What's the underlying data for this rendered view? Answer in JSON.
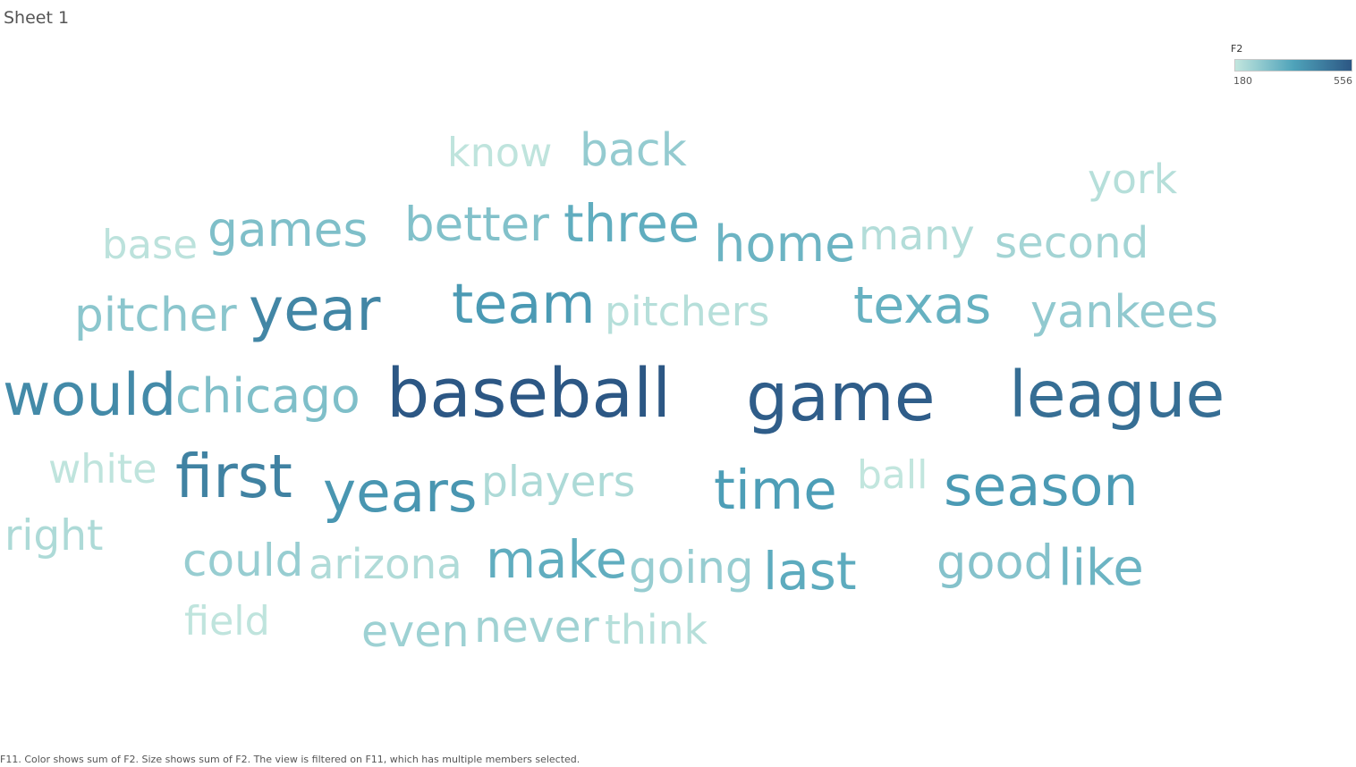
{
  "sheet": {
    "title": "Sheet 1"
  },
  "legend": {
    "title": "F2",
    "min_label": "180",
    "max_label": "556",
    "color_low": "#c2e6de",
    "color_mid": "#4fa3ba",
    "color_high": "#2c5784"
  },
  "caption": "F11.  Color shows sum of F2.  Size shows sum of F2. The view is filtered on F11, which has multiple members selected.",
  "chart_data": {
    "type": "word-cloud",
    "color_field": "F2",
    "size_field": "F2",
    "words": [
      {
        "text": "baseball",
        "value": 556
      },
      {
        "text": "game",
        "value": 540
      },
      {
        "text": "league",
        "value": 500
      },
      {
        "text": "would",
        "value": 430
      },
      {
        "text": "first",
        "value": 450
      },
      {
        "text": "year",
        "value": 440
      },
      {
        "text": "season",
        "value": 390
      },
      {
        "text": "time",
        "value": 380
      },
      {
        "text": "team",
        "value": 390
      },
      {
        "text": "years",
        "value": 400
      },
      {
        "text": "three",
        "value": 340
      },
      {
        "text": "make",
        "value": 340
      },
      {
        "text": "texas",
        "value": 330
      },
      {
        "text": "last",
        "value": 345
      },
      {
        "text": "like",
        "value": 320
      },
      {
        "text": "home",
        "value": 320
      },
      {
        "text": "games",
        "value": 290
      },
      {
        "text": "better",
        "value": 285
      },
      {
        "text": "chicago",
        "value": 290
      },
      {
        "text": "good",
        "value": 280
      },
      {
        "text": "pitcher",
        "value": 270
      },
      {
        "text": "yankees",
        "value": 260
      },
      {
        "text": "back",
        "value": 255
      },
      {
        "text": "could",
        "value": 250
      },
      {
        "text": "going",
        "value": 250
      },
      {
        "text": "even",
        "value": 240
      },
      {
        "text": "never",
        "value": 235
      },
      {
        "text": "second",
        "value": 230
      },
      {
        "text": "players",
        "value": 215
      },
      {
        "text": "right",
        "value": 215
      },
      {
        "text": "arizona",
        "value": 210
      },
      {
        "text": "many",
        "value": 205
      },
      {
        "text": "pitchers",
        "value": 200
      },
      {
        "text": "york",
        "value": 200
      },
      {
        "text": "think",
        "value": 200
      },
      {
        "text": "base",
        "value": 190
      },
      {
        "text": "know",
        "value": 185
      },
      {
        "text": "white",
        "value": 185
      },
      {
        "text": "field",
        "value": 185
      },
      {
        "text": "ball",
        "value": 180
      }
    ]
  }
}
